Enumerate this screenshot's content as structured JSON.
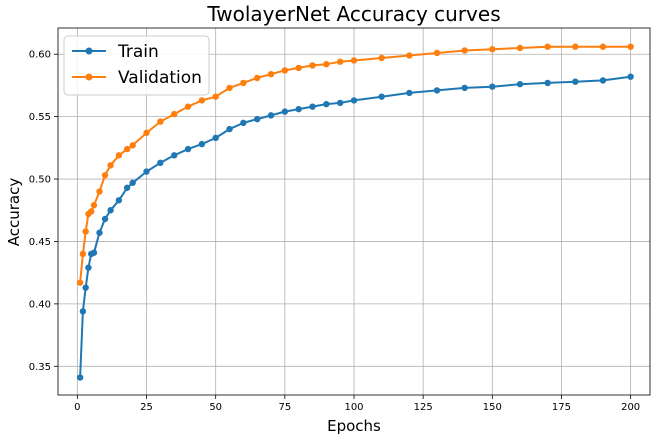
{
  "chart_data": {
    "type": "line",
    "title": "TwolayerNet Accuracy curves",
    "xlabel": "Epochs",
    "ylabel": "Accuracy",
    "xlim": [
      -7,
      207
    ],
    "ylim": [
      0.327,
      0.621
    ],
    "xticks": [
      0,
      25,
      50,
      75,
      100,
      125,
      150,
      175,
      200
    ],
    "yticks": [
      0.35,
      0.4,
      0.45,
      0.5,
      0.55,
      0.6
    ],
    "ytick_labels": [
      "0.35",
      "0.40",
      "0.45",
      "0.50",
      "0.55",
      "0.60"
    ],
    "grid": true,
    "legend": "upper-left",
    "series": [
      {
        "name": "Train",
        "color": "#1f77b4",
        "x": [
          1,
          2,
          3,
          4,
          5,
          6,
          8,
          10,
          12,
          15,
          18,
          20,
          25,
          30,
          35,
          40,
          45,
          50,
          55,
          60,
          65,
          70,
          75,
          80,
          85,
          90,
          95,
          100,
          110,
          120,
          130,
          140,
          150,
          160,
          170,
          180,
          190,
          200
        ],
        "y": [
          0.341,
          0.394,
          0.413,
          0.429,
          0.44,
          0.441,
          0.457,
          0.468,
          0.475,
          0.483,
          0.493,
          0.497,
          0.506,
          0.513,
          0.519,
          0.524,
          0.528,
          0.533,
          0.54,
          0.545,
          0.548,
          0.551,
          0.554,
          0.556,
          0.558,
          0.56,
          0.561,
          0.563,
          0.566,
          0.569,
          0.571,
          0.573,
          0.574,
          0.576,
          0.577,
          0.578,
          0.579,
          0.582
        ]
      },
      {
        "name": "Validation",
        "color": "#ff7f0e",
        "x": [
          1,
          2,
          3,
          4,
          5,
          6,
          8,
          10,
          12,
          15,
          18,
          20,
          25,
          30,
          35,
          40,
          45,
          50,
          55,
          60,
          65,
          70,
          75,
          80,
          85,
          90,
          95,
          100,
          110,
          120,
          130,
          140,
          150,
          160,
          170,
          180,
          190,
          200
        ],
        "y": [
          0.417,
          0.44,
          0.458,
          0.472,
          0.474,
          0.479,
          0.49,
          0.503,
          0.511,
          0.519,
          0.524,
          0.527,
          0.537,
          0.546,
          0.552,
          0.558,
          0.563,
          0.566,
          0.573,
          0.577,
          0.581,
          0.584,
          0.587,
          0.589,
          0.591,
          0.592,
          0.594,
          0.595,
          0.597,
          0.599,
          0.601,
          0.603,
          0.604,
          0.605,
          0.606,
          0.606,
          0.606,
          0.606
        ]
      }
    ]
  }
}
